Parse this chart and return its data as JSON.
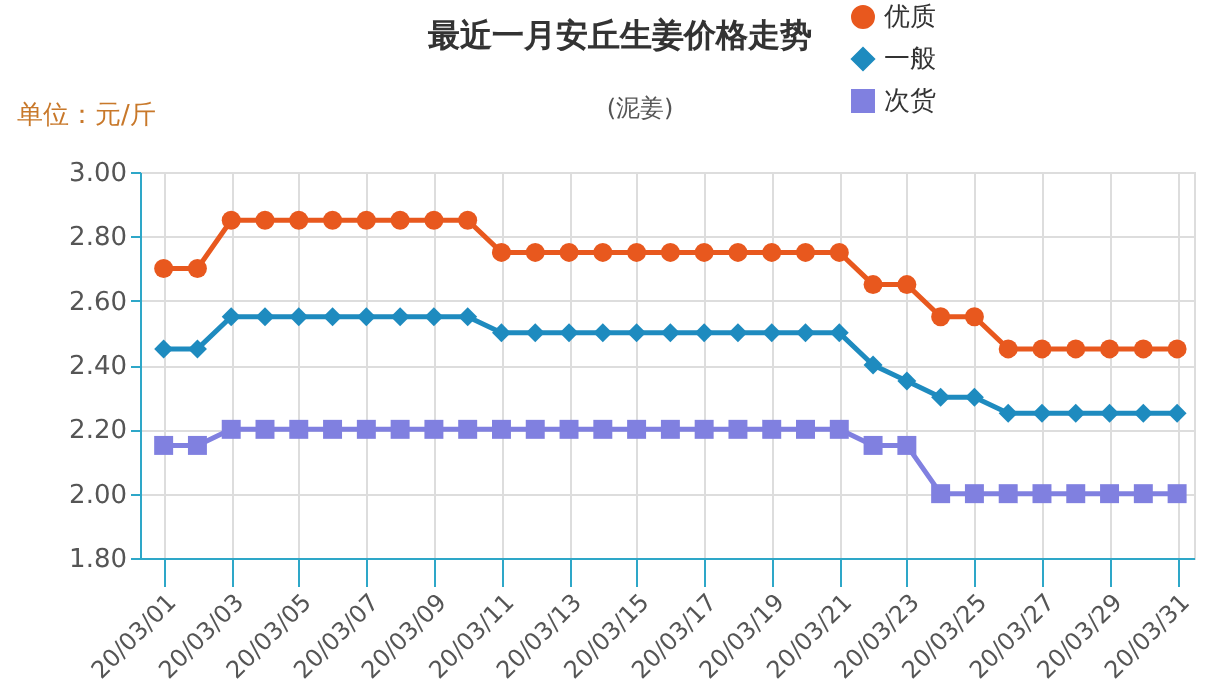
{
  "chart_data": {
    "type": "line",
    "title": "最近一月安丘生姜价格走势",
    "subtitle": "(泥姜)",
    "ylabel": "单位：元/斤",
    "categories": [
      "20/03/01",
      null,
      "20/03/03",
      null,
      "20/03/05",
      null,
      "20/03/07",
      null,
      "20/03/09",
      null,
      "20/03/11",
      null,
      "20/03/13",
      null,
      "20/03/15",
      null,
      "20/03/17",
      null,
      "20/03/19",
      null,
      "20/03/21",
      null,
      "20/03/23",
      null,
      "20/03/25",
      null,
      "20/03/27",
      null,
      "20/03/29",
      null,
      "20/03/31"
    ],
    "series": [
      {
        "name": "优质",
        "color": "#e8581e",
        "marker": "circle",
        "values": [
          2.7,
          2.7,
          2.85,
          2.85,
          2.85,
          2.85,
          2.85,
          2.85,
          2.85,
          2.85,
          2.75,
          2.75,
          2.75,
          2.75,
          2.75,
          2.75,
          2.75,
          2.75,
          2.75,
          2.75,
          2.75,
          2.65,
          2.65,
          2.55,
          2.55,
          2.45,
          2.45,
          2.45,
          2.45,
          2.45,
          2.45
        ]
      },
      {
        "name": "一般",
        "color": "#1e8bbf",
        "marker": "diamond",
        "values": [
          2.45,
          2.45,
          2.55,
          2.55,
          2.55,
          2.55,
          2.55,
          2.55,
          2.55,
          2.55,
          2.5,
          2.5,
          2.5,
          2.5,
          2.5,
          2.5,
          2.5,
          2.5,
          2.5,
          2.5,
          2.5,
          2.4,
          2.35,
          2.3,
          2.3,
          2.25,
          2.25,
          2.25,
          2.25,
          2.25,
          2.25
        ]
      },
      {
        "name": "次货",
        "color": "#8080e0",
        "marker": "square",
        "values": [
          2.15,
          2.15,
          2.2,
          2.2,
          2.2,
          2.2,
          2.2,
          2.2,
          2.2,
          2.2,
          2.2,
          2.2,
          2.2,
          2.2,
          2.2,
          2.2,
          2.2,
          2.2,
          2.2,
          2.2,
          2.2,
          2.15,
          2.15,
          2.0,
          2.0,
          2.0,
          2.0,
          2.0,
          2.0,
          2.0,
          2.0
        ]
      }
    ],
    "ylim": [
      1.8,
      3.0
    ],
    "yticks": [
      {
        "value": 1.8,
        "label": "1.80"
      },
      {
        "value": 2.0,
        "label": "2.00"
      },
      {
        "value": 2.2,
        "label": "2.20"
      },
      {
        "value": 2.4,
        "label": "2.40"
      },
      {
        "value": 2.6,
        "label": "2.60"
      },
      {
        "value": 2.8,
        "label": "2.80"
      },
      {
        "value": 3.0,
        "label": "3.00"
      }
    ],
    "grid": true,
    "legend": "top right",
    "line_style": "solid"
  }
}
